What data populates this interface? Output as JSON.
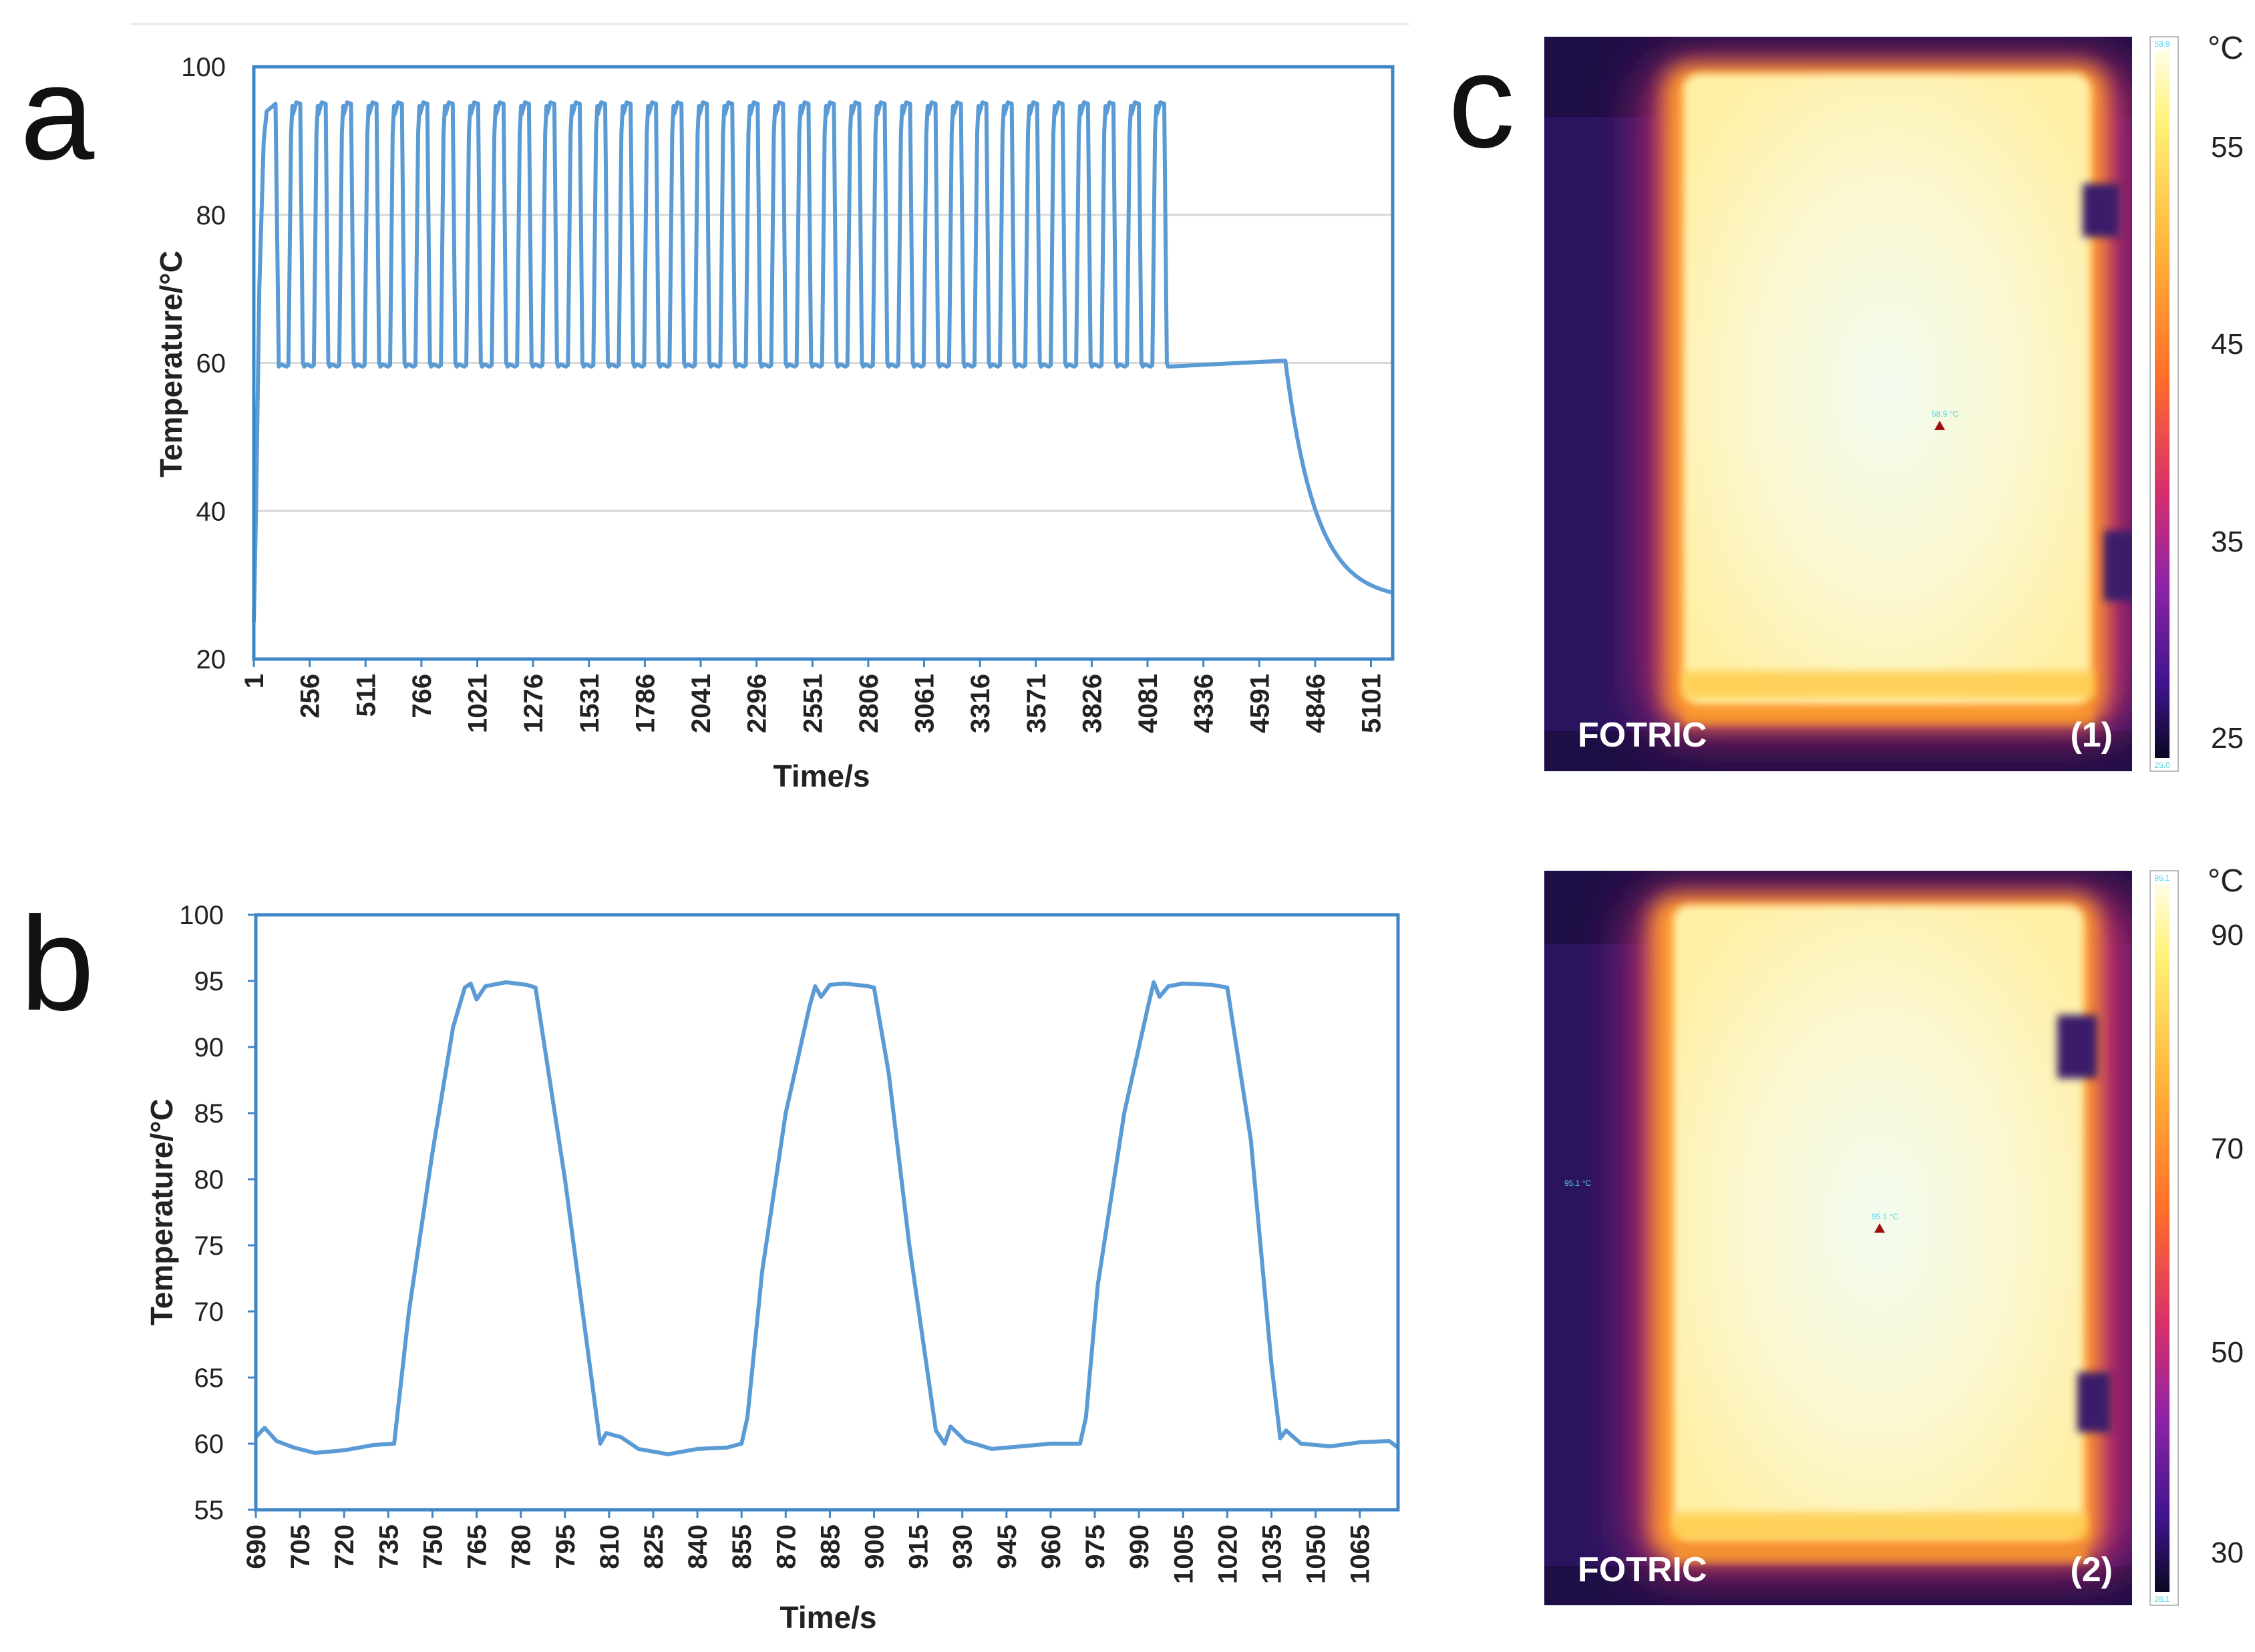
{
  "colors": {
    "series": "#5b9bd5",
    "frame": "#3f86c7",
    "grid": "#d9d9d9",
    "thermal_hot": "#fff6c2",
    "thermal_mid": "#ff8a1e",
    "thermal_cold": "#1a0a3a",
    "marker": "#9b1111"
  },
  "panels": {
    "a": {
      "letter": "a"
    },
    "b": {
      "letter": "b"
    },
    "c": {
      "letter": "c"
    }
  },
  "chart_data": [
    {
      "id": "a",
      "type": "line",
      "title": "",
      "xlabel": "Time/s",
      "ylabel": "Temperature/°C",
      "ylim": [
        20,
        100
      ],
      "yticks": [
        "100",
        "80",
        "60",
        "40",
        "20"
      ],
      "xlim": [
        1,
        5200
      ],
      "xticks": [
        "1",
        "256",
        "511",
        "766",
        "1021",
        "1276",
        "1531",
        "1786",
        "2041",
        "2296",
        "2551",
        "2806",
        "3061",
        "3316",
        "3571",
        "3826",
        "4081",
        "4336",
        "4591",
        "4846",
        "5101"
      ],
      "gridlines": "horizontal",
      "series": [
        {
          "name": "Temperature",
          "description": "Rapid rise from ~25 °C, then 36 cycles oscillating between ~60 °C and ~95 °C (period ~116 s) until ~4710 s, then cooling to ~28 °C",
          "start_time": 1,
          "start_temp": 25,
          "first_peak_time": 60,
          "cycles": 36,
          "period_s": 116,
          "low_temp": 59.5,
          "high_temp": 95,
          "cooling_start": 4710,
          "final_temp": 28,
          "end_time": 5200
        }
      ]
    },
    {
      "id": "b",
      "type": "line",
      "title": "",
      "xlabel": "Time/s",
      "ylabel": "Temperature/°C",
      "ylim": [
        55,
        100
      ],
      "yticks": [
        "100",
        "95",
        "90",
        "85",
        "80",
        "75",
        "70",
        "65",
        "60",
        "55"
      ],
      "xlim": [
        690,
        1078
      ],
      "xticks": [
        "690",
        "705",
        "720",
        "735",
        "750",
        "765",
        "780",
        "795",
        "810",
        "825",
        "840",
        "855",
        "870",
        "885",
        "900",
        "915",
        "930",
        "945",
        "960",
        "975",
        "990",
        "1005",
        "1020",
        "1035",
        "1050",
        "1065"
      ],
      "gridlines": "none",
      "series": [
        {
          "name": "Temperature",
          "x": [
            690,
            693,
            697,
            703,
            710,
            720,
            730,
            737,
            738,
            742,
            750,
            757,
            761,
            763,
            765,
            768,
            775,
            782,
            785,
            795,
            804,
            807,
            809,
            814,
            820,
            830,
            840,
            850,
            855,
            857,
            862,
            870,
            878,
            880,
            882,
            885,
            890,
            898,
            900,
            905,
            912,
            921,
            924,
            926,
            931,
            940,
            950,
            960,
            970,
            972,
            976,
            985,
            993,
            995,
            997,
            1000,
            1005,
            1015,
            1020,
            1028,
            1035,
            1038,
            1040,
            1045,
            1055,
            1065,
            1075,
            1078
          ],
          "y": [
            60.5,
            61.2,
            60.2,
            59.7,
            59.3,
            59.5,
            59.9,
            60.0,
            62,
            70,
            82,
            91.5,
            94.5,
            94.8,
            93.6,
            94.6,
            94.9,
            94.7,
            94.5,
            80,
            65,
            60.0,
            60.8,
            60.5,
            59.6,
            59.2,
            59.6,
            59.7,
            60.0,
            62,
            73,
            85,
            93,
            94.6,
            93.8,
            94.7,
            94.8,
            94.6,
            94.5,
            88,
            75,
            61,
            60.0,
            61.3,
            60.2,
            59.6,
            59.8,
            60.0,
            60.0,
            62,
            72,
            85,
            93,
            94.9,
            93.8,
            94.6,
            94.8,
            94.7,
            94.5,
            83,
            66,
            60.4,
            61.0,
            60.0,
            59.8,
            60.1,
            60.2,
            59.7
          ]
        }
      ]
    }
  ],
  "thermal_images": [
    {
      "id": "c1",
      "brand": "FOTRIC",
      "caption": "(1)",
      "unit": "°C",
      "scale_ticks": [
        "55",
        "45",
        "35",
        "25"
      ],
      "scale_max_label": "58.9",
      "scale_min_label": "25.0",
      "marker_reading": "58.9 °C"
    },
    {
      "id": "c2",
      "brand": "FOTRIC",
      "caption": "(2)",
      "unit": "°C",
      "scale_ticks": [
        "90",
        "70",
        "50",
        "30"
      ],
      "scale_max_label": "95.1",
      "scale_min_label": "28.1",
      "marker_reading": "95.1 °C",
      "side_reading": "95.1 °C"
    }
  ]
}
